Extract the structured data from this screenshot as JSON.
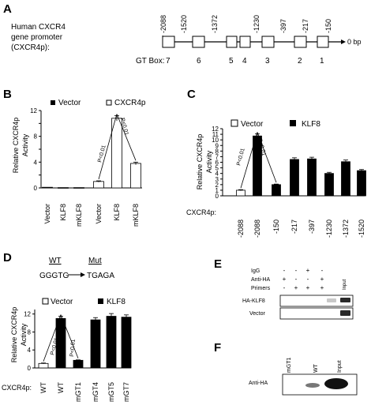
{
  "panel_a": {
    "letter": "A",
    "title_lines": [
      "Human CXCR4",
      "gene promoter",
      "(CXCR4p):"
    ],
    "positions": [
      "-2088",
      "-1520",
      "-1372",
      "-1230",
      "-397",
      "-217",
      "-150"
    ],
    "end_label": "0 bp",
    "gt_box_label": "GT Box:",
    "gt_numbers": [
      "7",
      "6",
      "5",
      "4",
      "3",
      "2",
      "1"
    ]
  },
  "panel_b": {
    "letter": "B",
    "ylabel_lines": [
      "Relative CXCR4p",
      "Activity"
    ],
    "pval": "P<0.01"
  },
  "panel_c": {
    "letter": "C",
    "ylabel_lines": [
      "Relative CXCR4p",
      "Activity"
    ],
    "x_prefix": "CXCR4p:",
    "pval": "P<0.01"
  },
  "panel_d": {
    "letter": "D",
    "wt_label": "WT",
    "mut_label": "Mut",
    "wt_seq": "GGGTG",
    "mut_seq": "TGAGA",
    "ylabel_lines": [
      "Relative CXCR4p",
      "Activity"
    ],
    "x_prefix": "CXCR4p:",
    "pval": "P<0.01"
  },
  "panel_e": {
    "letter": "E",
    "row_labels": [
      "IgG",
      "Anti-HA",
      "Primers"
    ],
    "rows": [
      [
        "-",
        "-",
        "+",
        "-"
      ],
      [
        "+",
        "-",
        "-",
        "+"
      ],
      [
        "-",
        "+",
        "+",
        "+"
      ]
    ],
    "input_label": "Input",
    "blot_labels": [
      "HA-KLF8",
      "Vector"
    ]
  },
  "panel_f": {
    "letter": "F",
    "lanes": [
      "mGT1",
      "WT",
      "Input"
    ],
    "blot_label": "Anti-HA"
  },
  "chart_data": [
    {
      "type": "bar",
      "panel": "B",
      "categories": [
        "Vector",
        "KLF8",
        "mKLF8",
        "Vector",
        "KLF8",
        "mKLF8"
      ],
      "series": [
        {
          "name": "Vector",
          "values": [
            0.1,
            0.05,
            0.05,
            null,
            null,
            null
          ],
          "fill": "#000000"
        },
        {
          "name": "CXCR4p",
          "values": [
            null,
            null,
            null,
            1.0,
            10.8,
            3.8
          ],
          "fill": "#ffffff"
        }
      ],
      "errors": [
        0,
        0,
        0,
        0.1,
        0.4,
        0.2
      ],
      "yticks": [
        0,
        2,
        4,
        6,
        8,
        10,
        12
      ],
      "ylim": [
        0,
        12
      ]
    },
    {
      "type": "bar",
      "panel": "C",
      "categories": [
        "-2088",
        "-2088",
        "-150",
        "-217",
        "-397",
        "-1230",
        "-1372",
        "-1520"
      ],
      "series": [
        {
          "name": "Vector",
          "values": [
            1.0,
            null,
            null,
            null,
            null,
            null,
            null,
            null
          ],
          "fill": "#ffffff"
        },
        {
          "name": "KLF8",
          "values": [
            null,
            10.7,
            2.0,
            6.5,
            6.6,
            4.0,
            6.1,
            4.5
          ],
          "fill": "#000000"
        }
      ],
      "errors": [
        0.1,
        0.4,
        0.1,
        0.3,
        0.3,
        0.2,
        0.3,
        0.2
      ],
      "yticks": [
        0,
        1,
        2,
        3,
        4,
        5,
        6,
        7,
        8,
        9,
        10,
        11,
        12
      ],
      "ylim": [
        0,
        12
      ]
    },
    {
      "type": "bar",
      "panel": "D",
      "categories": [
        "WT",
        "WT",
        "mGT1",
        "mGT4",
        "mGT5",
        "mGT7"
      ],
      "series": [
        {
          "name": "Vector",
          "values": [
            1.0,
            null,
            null,
            null,
            null,
            null
          ],
          "fill": "#ffffff"
        },
        {
          "name": "KLF8",
          "values": [
            null,
            11.0,
            1.7,
            10.7,
            11.5,
            11.3
          ],
          "fill": "#000000"
        }
      ],
      "errors": [
        0.1,
        0.5,
        0.1,
        0.5,
        0.6,
        0.5
      ],
      "yticks": [
        0,
        4,
        8,
        12
      ],
      "ylim": [
        0,
        13
      ]
    }
  ]
}
